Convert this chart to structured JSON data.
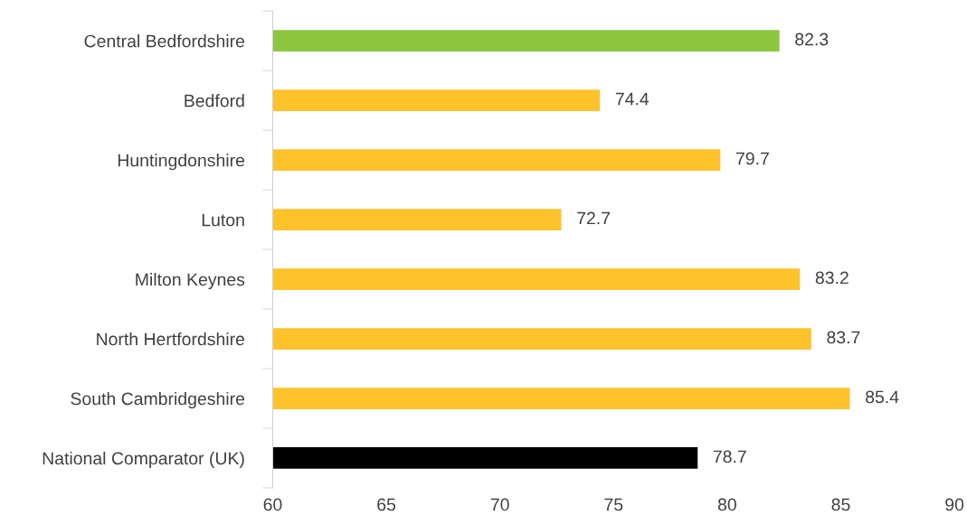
{
  "chart_data": {
    "type": "bar",
    "orientation": "horizontal",
    "categories": [
      "Central Bedfordshire",
      "Bedford",
      "Huntingdonshire",
      "Luton",
      "Milton Keynes",
      "North Hertfordshire",
      "South Cambridgeshire",
      "National Comparator (UK)"
    ],
    "values": [
      82.3,
      74.4,
      79.7,
      72.7,
      83.2,
      83.7,
      85.4,
      78.7
    ],
    "colors": [
      "#8dc63f",
      "#fec22b",
      "#fec22b",
      "#fec22b",
      "#fec22b",
      "#fec22b",
      "#fec22b",
      "#000000"
    ],
    "xlim": [
      60,
      90
    ],
    "xticks": [
      60,
      65,
      70,
      75,
      80,
      85,
      90
    ],
    "data_labels": true,
    "grid": false,
    "legend": false
  }
}
